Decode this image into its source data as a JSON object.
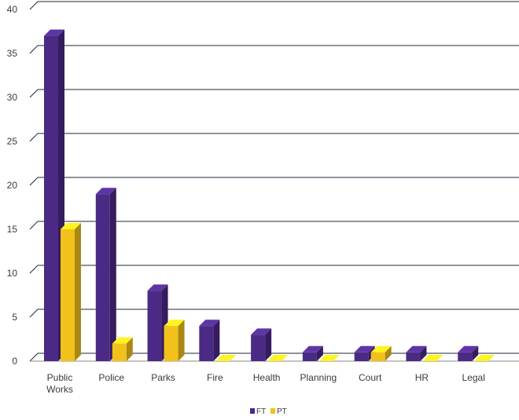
{
  "chart_data": {
    "type": "bar",
    "style": "3d-clustered",
    "categories": [
      "Public Works",
      "Police",
      "Parks",
      "Fire",
      "Health",
      "Planning",
      "Court",
      "HR",
      "Legal"
    ],
    "series": [
      {
        "name": "FT",
        "color": "#4b2a85",
        "values": [
          37,
          19,
          8,
          4,
          3,
          1,
          1,
          1,
          1
        ]
      },
      {
        "name": "PT",
        "color": "#f2c21b",
        "values": [
          15,
          2,
          4,
          0,
          0,
          0,
          1,
          0,
          0
        ]
      }
    ],
    "ylim": [
      0,
      40
    ],
    "yticks": [
      0,
      5,
      10,
      15,
      20,
      25,
      30,
      35,
      40
    ],
    "grid": true,
    "legend_position": "bottom-center",
    "title": "",
    "xlabel": "",
    "ylabel": ""
  }
}
